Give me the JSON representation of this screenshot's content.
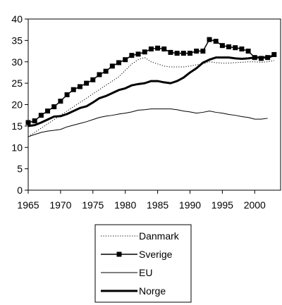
{
  "chart_data": {
    "type": "line",
    "title": "",
    "xlabel": "",
    "ylabel": "",
    "xlim": [
      1965,
      2004
    ],
    "ylim": [
      0,
      40
    ],
    "x_ticks": [
      1965,
      1970,
      1975,
      1980,
      1985,
      1990,
      1995,
      2000
    ],
    "x_tick_labels": [
      "1965",
      "1970",
      "1975",
      "1980",
      "1985",
      "1990",
      "1995",
      "2000"
    ],
    "y_ticks": [
      0,
      5,
      10,
      15,
      20,
      25,
      30,
      35,
      40
    ],
    "y_tick_labels": [
      "0",
      "5",
      "10",
      "15",
      "20",
      "25",
      "30",
      "35",
      "40"
    ],
    "grid": false,
    "legend_position": "bottom",
    "series": [
      {
        "name": "Danmark",
        "style": "dotted",
        "color": "#000000",
        "x": [
          1965,
          1966,
          1967,
          1968,
          1969,
          1970,
          1971,
          1972,
          1973,
          1974,
          1975,
          1976,
          1977,
          1978,
          1979,
          1980,
          1981,
          1982,
          1983,
          1984,
          1985,
          1986,
          1987,
          1988,
          1989,
          1990,
          1991,
          1992,
          1993,
          1994,
          1995,
          1996,
          1997,
          1998,
          1999,
          2000,
          2001,
          2002,
          2003
        ],
        "y": [
          12.5,
          13.5,
          14.5,
          15.5,
          16.5,
          17.5,
          18.5,
          19.5,
          20.5,
          21.5,
          22.5,
          23.5,
          24.5,
          25.5,
          26.5,
          28.0,
          29.5,
          30.5,
          31.0,
          30.0,
          29.5,
          29.0,
          28.8,
          28.8,
          28.8,
          29.0,
          29.3,
          29.5,
          30.0,
          29.8,
          29.7,
          29.7,
          29.8,
          29.9,
          30.0,
          30.0,
          29.9,
          30.0,
          30.3
        ]
      },
      {
        "name": "Sverige",
        "style": "square-markers",
        "color": "#000000",
        "x": [
          1965,
          1966,
          1967,
          1968,
          1969,
          1970,
          1971,
          1972,
          1973,
          1974,
          1975,
          1976,
          1977,
          1978,
          1979,
          1980,
          1981,
          1982,
          1983,
          1984,
          1985,
          1986,
          1987,
          1988,
          1989,
          1990,
          1991,
          1992,
          1993,
          1994,
          1995,
          1996,
          1997,
          1998,
          1999,
          2000,
          2001,
          2002,
          2003
        ],
        "y": [
          15.8,
          16.2,
          17.5,
          18.5,
          19.5,
          20.8,
          22.3,
          23.5,
          24.2,
          25.0,
          25.8,
          27.0,
          27.8,
          29.0,
          29.8,
          30.5,
          31.5,
          31.8,
          32.3,
          33.0,
          33.2,
          33.0,
          32.2,
          32.0,
          32.0,
          32.0,
          32.5,
          32.5,
          35.2,
          34.8,
          33.8,
          33.5,
          33.3,
          33.0,
          32.5,
          31.0,
          30.8,
          31.0,
          31.7
        ]
      },
      {
        "name": "EU",
        "style": "thin",
        "color": "#000000",
        "x": [
          1965,
          1966,
          1967,
          1968,
          1969,
          1970,
          1971,
          1972,
          1973,
          1974,
          1975,
          1976,
          1977,
          1978,
          1979,
          1980,
          1981,
          1982,
          1983,
          1984,
          1985,
          1986,
          1987,
          1988,
          1989,
          1990,
          1991,
          1992,
          1993,
          1994,
          1995,
          1996,
          1997,
          1998,
          1999,
          2000,
          2001,
          2002
        ],
        "y": [
          12.5,
          13.0,
          13.5,
          13.8,
          14.0,
          14.2,
          14.8,
          15.2,
          15.6,
          16.0,
          16.5,
          17.0,
          17.3,
          17.5,
          17.8,
          18.0,
          18.3,
          18.7,
          18.8,
          19.0,
          19.0,
          19.0,
          19.0,
          18.8,
          18.5,
          18.3,
          18.0,
          18.2,
          18.5,
          18.2,
          18.0,
          17.7,
          17.5,
          17.2,
          17.0,
          16.6,
          16.6,
          16.8
        ]
      },
      {
        "name": "Norge",
        "style": "thick",
        "color": "#000000",
        "x": [
          1965,
          1966,
          1967,
          1968,
          1969,
          1970,
          1971,
          1972,
          1973,
          1974,
          1975,
          1976,
          1977,
          1978,
          1979,
          1980,
          1981,
          1982,
          1983,
          1984,
          1985,
          1986,
          1987,
          1988,
          1989,
          1990,
          1991,
          1992,
          1993,
          1994,
          1995,
          1996,
          1997,
          1998,
          1999,
          2000,
          2001,
          2002,
          2003
        ],
        "y": [
          15.0,
          15.2,
          15.8,
          16.5,
          17.2,
          17.3,
          17.8,
          18.5,
          19.2,
          19.6,
          20.5,
          21.5,
          22.0,
          22.7,
          23.4,
          23.8,
          24.5,
          24.8,
          25.0,
          25.5,
          25.5,
          25.2,
          25.0,
          25.5,
          26.3,
          27.5,
          28.5,
          29.8,
          30.5,
          31.0,
          31.0,
          31.0,
          30.8,
          30.7,
          30.8,
          31.0,
          31.0,
          31.0,
          31.5
        ]
      }
    ]
  }
}
